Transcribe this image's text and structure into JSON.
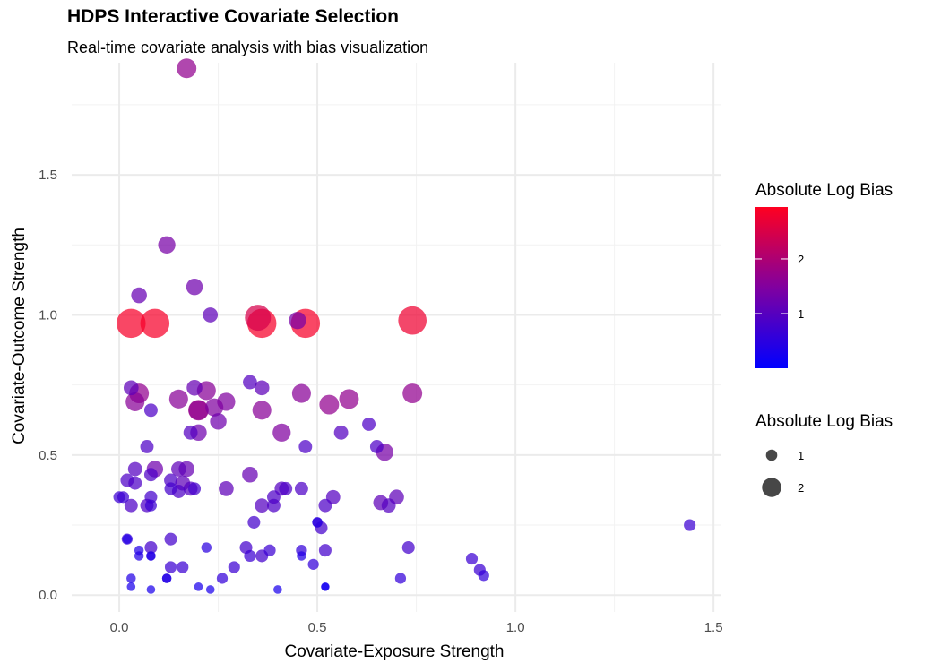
{
  "chart_data": {
    "type": "scatter",
    "title": "HDPS Interactive Covariate Selection",
    "subtitle": "Real-time covariate analysis with bias visualization",
    "xlabel": "Covariate-Exposure Strength",
    "ylabel": "Covariate-Outcome Strength",
    "xlim": [
      -0.12,
      1.52
    ],
    "ylim": [
      -0.06,
      1.9
    ],
    "x_ticks": [
      0.0,
      0.5,
      1.0,
      1.5
    ],
    "x_tick_labels": [
      "0.0",
      "0.5",
      "1.0",
      "1.5"
    ],
    "y_ticks": [
      0.0,
      0.5,
      1.0,
      1.5
    ],
    "y_tick_labels": [
      "0.0",
      "0.5",
      "1.0",
      "1.5"
    ],
    "grid": true,
    "color_scale": {
      "low": "#0000ff",
      "high": "#ff0000",
      "min": 0,
      "max": 3
    },
    "legend": {
      "position": "right",
      "color_title": "Absolute Log Bias",
      "color_ticks": [
        1,
        2
      ],
      "color_tick_labels": [
        "1",
        "2"
      ],
      "size_title": "Absolute Log Bias",
      "size_entries": [
        1,
        2
      ],
      "size_entry_labels": [
        "1",
        "2"
      ]
    },
    "x": [
      0.17,
      0.03,
      0.09,
      0.36,
      0.47,
      0.74,
      0.12,
      0.19,
      0.05,
      0.23,
      0.35,
      0.45,
      0.03,
      0.04,
      0.05,
      0.15,
      0.19,
      0.22,
      0.24,
      0.25,
      0.27,
      0.33,
      0.36,
      0.46,
      0.53,
      0.58,
      0.08,
      0.2,
      0.2,
      0.36,
      0.41,
      0.47,
      0.56,
      0.63,
      0.65,
      0.67,
      0.74,
      0.07,
      0.18,
      0.2,
      0.04,
      0.09,
      0.15,
      0.17,
      0.01,
      0.02,
      0.04,
      0.08,
      0.08,
      0.13,
      0.13,
      0.15,
      0.16,
      0.18,
      0.19,
      0.27,
      0.33,
      0.36,
      0.39,
      0.41,
      0.42,
      0.46,
      0.52,
      0.54,
      0.66,
      0.68,
      0.7,
      0.0,
      0.03,
      0.07,
      0.08,
      0.02,
      0.34,
      0.39,
      0.5,
      0.51,
      0.73,
      0.05,
      0.05,
      0.08,
      0.08,
      0.13,
      0.22,
      0.32,
      0.36,
      0.46,
      0.46,
      0.49,
      0.52,
      0.02,
      0.03,
      0.08,
      0.12,
      0.13,
      0.16,
      0.26,
      0.29,
      0.33,
      0.38,
      0.5,
      0.89,
      0.91,
      0.92,
      0.71,
      1.44,
      0.03,
      0.08,
      0.12,
      0.2,
      0.23,
      0.4,
      0.52,
      0.52
    ],
    "y": [
      1.88,
      0.97,
      0.97,
      0.97,
      0.97,
      0.98,
      1.25,
      1.1,
      1.07,
      1.0,
      0.99,
      0.98,
      0.74,
      0.69,
      0.72,
      0.7,
      0.74,
      0.73,
      0.67,
      0.62,
      0.69,
      0.76,
      0.74,
      0.72,
      0.68,
      0.7,
      0.66,
      0.66,
      0.66,
      0.66,
      0.58,
      0.53,
      0.58,
      0.61,
      0.53,
      0.51,
      0.72,
      0.53,
      0.58,
      0.58,
      0.45,
      0.45,
      0.45,
      0.45,
      0.35,
      0.41,
      0.4,
      0.43,
      0.35,
      0.41,
      0.38,
      0.37,
      0.4,
      0.38,
      0.38,
      0.38,
      0.43,
      0.32,
      0.32,
      0.38,
      0.38,
      0.38,
      0.32,
      0.35,
      0.33,
      0.32,
      0.35,
      0.35,
      0.32,
      0.32,
      0.32,
      0.2,
      0.26,
      0.35,
      0.26,
      0.24,
      0.17,
      0.16,
      0.14,
      0.17,
      0.14,
      0.2,
      0.17,
      0.17,
      0.14,
      0.16,
      0.14,
      0.11,
      0.16,
      0.2,
      0.06,
      0.14,
      0.06,
      0.1,
      0.1,
      0.06,
      0.1,
      0.14,
      0.16,
      0.26,
      0.13,
      0.09,
      0.07,
      0.06,
      0.25,
      0.03,
      0.02,
      0.06,
      0.03,
      0.02,
      0.02,
      0.03,
      0.03
    ],
    "bias": [
      1.7,
      2.9,
      2.9,
      2.9,
      2.9,
      2.8,
      1.4,
      1.3,
      1.2,
      1.1,
      2.5,
      1.4,
      1.1,
      1.6,
      1.7,
      1.6,
      1.2,
      1.6,
      1.5,
      1.3,
      1.5,
      1.0,
      1.1,
      1.6,
      1.7,
      1.7,
      0.9,
      1.8,
      1.7,
      1.6,
      1.5,
      0.9,
      1.0,
      0.9,
      0.9,
      1.4,
      1.7,
      0.9,
      1.0,
      1.3,
      1.0,
      1.3,
      1.1,
      1.2,
      0.7,
      0.9,
      0.9,
      0.9,
      0.8,
      0.9,
      0.8,
      0.9,
      1.1,
      1.0,
      0.8,
      1.1,
      1.2,
      1.0,
      0.9,
      1.0,
      0.9,
      0.9,
      0.9,
      1.0,
      1.1,
      1.0,
      1.1,
      0.7,
      0.9,
      0.9,
      0.7,
      0.6,
      0.8,
      0.9,
      0.5,
      0.8,
      0.8,
      0.4,
      0.4,
      0.8,
      0.4,
      0.8,
      0.5,
      0.8,
      0.8,
      0.6,
      0.4,
      0.6,
      0.8,
      0.4,
      0.4,
      0.4,
      0.4,
      0.7,
      0.7,
      0.6,
      0.7,
      0.7,
      0.7,
      0.5,
      0.7,
      0.7,
      0.6,
      0.6,
      0.7,
      0.3,
      0.3,
      0.4,
      0.3,
      0.3,
      0.3,
      0.2,
      0.3
    ]
  }
}
